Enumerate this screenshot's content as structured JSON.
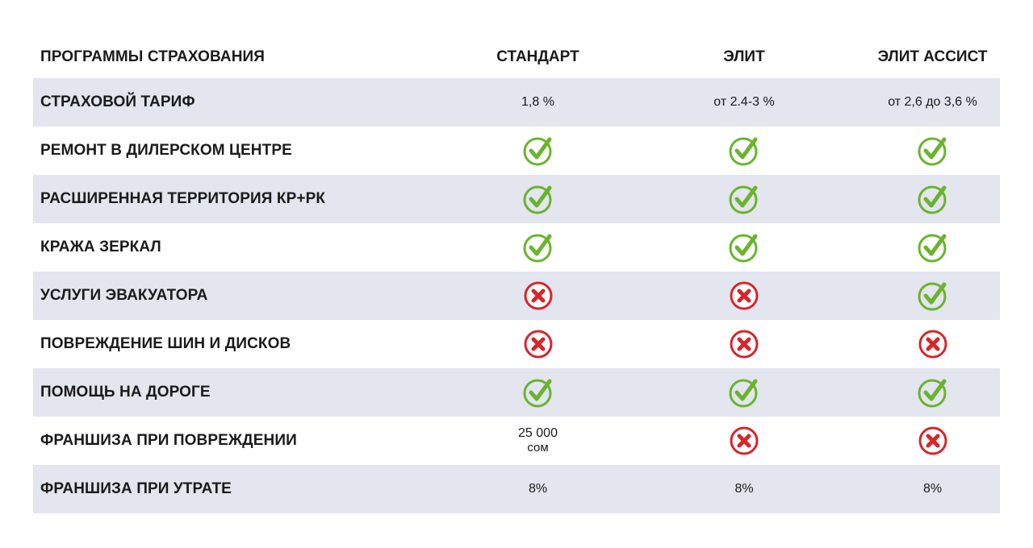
{
  "header": {
    "label": "ПРОГРАММЫ СТРАХОВАНИЯ",
    "plans": [
      "СТАНДАРТ",
      "ЭЛИТ",
      "ЭЛИТ АССИСТ"
    ]
  },
  "rows": [
    {
      "label": "СТРАХОВОЙ ТАРИФ",
      "values": [
        {
          "type": "text",
          "text": "1,8 %"
        },
        {
          "type": "text",
          "text": "от 2.4-3 %"
        },
        {
          "type": "text",
          "text": "от 2,6 до 3,6 %"
        }
      ]
    },
    {
      "label": "РЕМОНТ В ДИЛЕРСКОМ ЦЕНТРЕ",
      "values": [
        {
          "type": "check"
        },
        {
          "type": "check"
        },
        {
          "type": "check"
        }
      ]
    },
    {
      "label": "РАСШИРЕННАЯ ТЕРРИТОРИЯ  КР+РК",
      "values": [
        {
          "type": "check"
        },
        {
          "type": "check"
        },
        {
          "type": "check"
        }
      ]
    },
    {
      "label": "КРАЖА ЗЕРКАЛ",
      "values": [
        {
          "type": "check"
        },
        {
          "type": "check"
        },
        {
          "type": "check"
        }
      ]
    },
    {
      "label": "УСЛУГИ ЭВАКУАТОРА",
      "values": [
        {
          "type": "cross"
        },
        {
          "type": "cross"
        },
        {
          "type": "check"
        }
      ]
    },
    {
      "label": "ПОВРЕЖДЕНИЕ ШИН И ДИСКОВ",
      "values": [
        {
          "type": "cross"
        },
        {
          "type": "cross"
        },
        {
          "type": "cross"
        }
      ]
    },
    {
      "label": "ПОМОЩЬ НА ДОРОГЕ",
      "values": [
        {
          "type": "check"
        },
        {
          "type": "check"
        },
        {
          "type": "check"
        }
      ]
    },
    {
      "label": "ФРАНШИЗА ПРИ ПОВРЕЖДЕНИИ",
      "values": [
        {
          "type": "text",
          "text": "25 000",
          "sub": "сом"
        },
        {
          "type": "cross"
        },
        {
          "type": "cross"
        }
      ]
    },
    {
      "label": "ФРАНШИЗА ПРИ УТРАТЕ",
      "values": [
        {
          "type": "text",
          "text": "8%"
        },
        {
          "type": "text",
          "text": "8%"
        },
        {
          "type": "text",
          "text": "8%"
        }
      ]
    }
  ],
  "colors": {
    "check": "#6ab42d",
    "cross": "#d8252b",
    "shade": "#e3e5ef"
  },
  "icons": {
    "check": "check-circle-icon",
    "cross": "cross-circle-icon"
  }
}
